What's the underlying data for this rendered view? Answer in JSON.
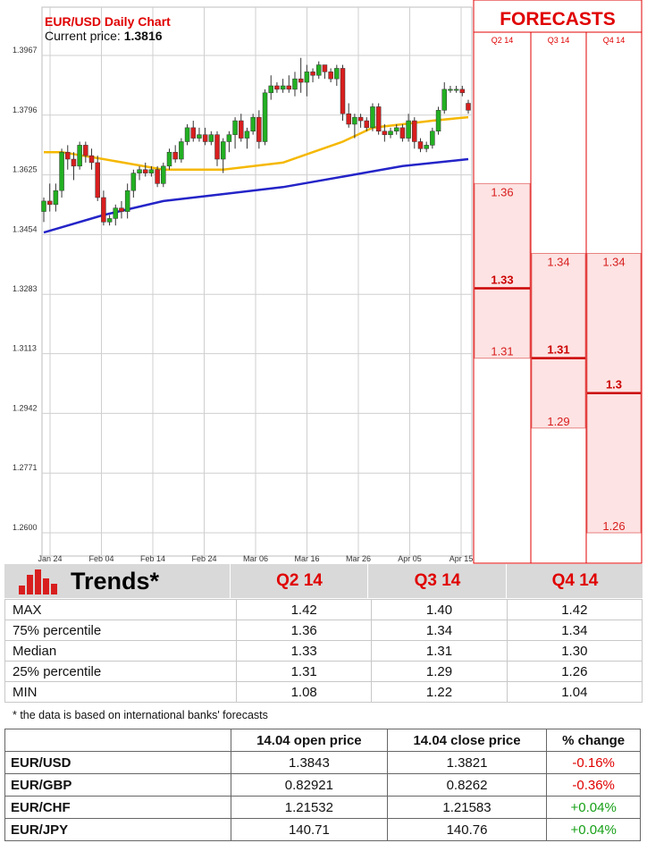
{
  "chart_data": [
    {
      "type": "candlestick",
      "title": "EUR/USD Daily Chart",
      "subtitle_label": "Current price: ",
      "current_price": "1.3816",
      "y_ticks": [
        "1.3967",
        "1.3796",
        "1.3625",
        "1.3454",
        "1.3283",
        "1.3113",
        "1.2942",
        "1.2771",
        "1.2600"
      ],
      "x_ticks": [
        "Jan 24",
        "Feb 04",
        "Feb 14",
        "Feb 24",
        "Mar 06",
        "Mar 16",
        "Mar 26",
        "Apr 05",
        "Apr 15"
      ],
      "ylim": [
        1.26,
        1.3967
      ],
      "grid": true,
      "candles": [
        [
          1.352,
          1.356,
          1.349,
          1.355
        ],
        [
          1.355,
          1.36,
          1.352,
          1.354
        ],
        [
          1.354,
          1.36,
          1.352,
          1.358
        ],
        [
          1.358,
          1.37,
          1.356,
          1.369
        ],
        [
          1.369,
          1.371,
          1.364,
          1.367
        ],
        [
          1.367,
          1.369,
          1.361,
          1.365
        ],
        [
          1.365,
          1.372,
          1.364,
          1.371
        ],
        [
          1.371,
          1.372,
          1.366,
          1.368
        ],
        [
          1.368,
          1.37,
          1.364,
          1.366
        ],
        [
          1.366,
          1.368,
          1.355,
          1.356
        ],
        [
          1.356,
          1.358,
          1.348,
          1.349
        ],
        [
          1.349,
          1.351,
          1.348,
          1.35
        ],
        [
          1.35,
          1.354,
          1.348,
          1.353
        ],
        [
          1.353,
          1.355,
          1.35,
          1.352
        ],
        [
          1.352,
          1.36,
          1.35,
          1.358
        ],
        [
          1.358,
          1.364,
          1.356,
          1.363
        ],
        [
          1.363,
          1.365,
          1.361,
          1.364
        ],
        [
          1.364,
          1.366,
          1.362,
          1.363
        ],
        [
          1.363,
          1.365,
          1.362,
          1.364
        ],
        [
          1.364,
          1.365,
          1.359,
          1.36
        ],
        [
          1.36,
          1.366,
          1.359,
          1.365
        ],
        [
          1.365,
          1.37,
          1.364,
          1.369
        ],
        [
          1.369,
          1.371,
          1.366,
          1.367
        ],
        [
          1.367,
          1.373,
          1.366,
          1.372
        ],
        [
          1.372,
          1.377,
          1.371,
          1.376
        ],
        [
          1.376,
          1.378,
          1.372,
          1.373
        ],
        [
          1.373,
          1.376,
          1.372,
          1.374
        ],
        [
          1.374,
          1.376,
          1.371,
          1.372
        ],
        [
          1.372,
          1.375,
          1.371,
          1.374
        ],
        [
          1.374,
          1.375,
          1.365,
          1.367
        ],
        [
          1.367,
          1.373,
          1.363,
          1.372
        ],
        [
          1.372,
          1.375,
          1.369,
          1.374
        ],
        [
          1.374,
          1.379,
          1.37,
          1.378
        ],
        [
          1.378,
          1.38,
          1.372,
          1.373
        ],
        [
          1.373,
          1.376,
          1.37,
          1.375
        ],
        [
          1.375,
          1.38,
          1.374,
          1.379
        ],
        [
          1.379,
          1.381,
          1.37,
          1.372
        ],
        [
          1.372,
          1.387,
          1.371,
          1.386
        ],
        [
          1.386,
          1.391,
          1.384,
          1.388
        ],
        [
          1.388,
          1.389,
          1.386,
          1.387
        ],
        [
          1.387,
          1.39,
          1.386,
          1.388
        ],
        [
          1.388,
          1.391,
          1.386,
          1.387
        ],
        [
          1.387,
          1.392,
          1.385,
          1.39
        ],
        [
          1.39,
          1.396,
          1.386,
          1.389
        ],
        [
          1.389,
          1.394,
          1.385,
          1.392
        ],
        [
          1.392,
          1.393,
          1.389,
          1.391
        ],
        [
          1.391,
          1.395,
          1.39,
          1.394
        ],
        [
          1.394,
          1.394,
          1.39,
          1.392
        ],
        [
          1.392,
          1.393,
          1.389,
          1.39
        ],
        [
          1.39,
          1.394,
          1.388,
          1.393
        ],
        [
          1.393,
          1.394,
          1.378,
          1.38
        ],
        [
          1.38,
          1.383,
          1.376,
          1.377
        ],
        [
          1.377,
          1.38,
          1.373,
          1.379
        ],
        [
          1.379,
          1.38,
          1.376,
          1.378
        ],
        [
          1.378,
          1.379,
          1.375,
          1.376
        ],
        [
          1.376,
          1.383,
          1.375,
          1.382
        ],
        [
          1.382,
          1.383,
          1.374,
          1.375
        ],
        [
          1.375,
          1.377,
          1.372,
          1.374
        ],
        [
          1.374,
          1.376,
          1.373,
          1.375
        ],
        [
          1.375,
          1.377,
          1.374,
          1.376
        ],
        [
          1.376,
          1.377,
          1.372,
          1.373
        ],
        [
          1.373,
          1.38,
          1.372,
          1.378
        ],
        [
          1.378,
          1.379,
          1.37,
          1.372
        ],
        [
          1.372,
          1.373,
          1.369,
          1.37
        ],
        [
          1.37,
          1.372,
          1.369,
          1.371
        ],
        [
          1.371,
          1.376,
          1.37,
          1.375
        ],
        [
          1.375,
          1.382,
          1.374,
          1.381
        ],
        [
          1.381,
          1.389,
          1.38,
          1.387
        ],
        [
          1.387,
          1.388,
          1.386,
          1.387
        ],
        [
          1.387,
          1.388,
          1.386,
          1.387
        ],
        [
          1.387,
          1.388,
          1.385,
          1.386
        ],
        [
          1.383,
          1.384,
          1.38,
          1.381
        ]
      ],
      "ma_fast": [
        [
          0,
          1.369
        ],
        [
          3,
          1.369
        ],
        [
          10,
          1.367
        ],
        [
          20,
          1.364
        ],
        [
          30,
          1.364
        ],
        [
          40,
          1.366
        ],
        [
          45,
          1.369
        ],
        [
          50,
          1.372
        ],
        [
          55,
          1.376
        ],
        [
          60,
          1.377
        ],
        [
          65,
          1.378
        ],
        [
          71,
          1.379
        ]
      ],
      "ma_slow": [
        [
          0,
          1.346
        ],
        [
          10,
          1.351
        ],
        [
          20,
          1.355
        ],
        [
          30,
          1.357
        ],
        [
          40,
          1.359
        ],
        [
          50,
          1.362
        ],
        [
          60,
          1.365
        ],
        [
          71,
          1.367
        ]
      ],
      "colors": {
        "up": "#22b022",
        "down": "#d81e1e",
        "ma_fast": "#f5b800",
        "ma_slow": "#2424c8",
        "title": "#e00000"
      }
    },
    {
      "type": "range-forecast",
      "title": "FORECASTS",
      "periods": [
        "Q2 14",
        "Q3 14",
        "Q4 14"
      ],
      "ylim": [
        1.26,
        1.3967
      ],
      "ranges": [
        {
          "period": "Q2 14",
          "p75": 1.36,
          "median": 1.33,
          "p25": 1.31,
          "p75_label": "1.36",
          "median_label": "1.33",
          "p25_label": "1.31"
        },
        {
          "period": "Q3 14",
          "p75": 1.34,
          "median": 1.31,
          "p25": 1.29,
          "p75_label": "1.34",
          "median_label": "1.31",
          "p25_label": "1.29"
        },
        {
          "period": "Q4 14",
          "p75": 1.34,
          "median": 1.3,
          "p25": 1.26,
          "p75_label": "1.34",
          "median_label": "1.3",
          "p25_label": "1.26"
        }
      ]
    }
  ],
  "trends": {
    "title": "Trends*",
    "icon": "bar-chart-icon",
    "columns": [
      "Q2 14",
      "Q3 14",
      "Q4 14"
    ],
    "rows": [
      {
        "label": "MAX",
        "values": [
          "1.42",
          "1.40",
          "1.42"
        ]
      },
      {
        "label": "75% percentile",
        "values": [
          "1.36",
          "1.34",
          "1.34"
        ]
      },
      {
        "label": "Median",
        "values": [
          "1.33",
          "1.31",
          "1.30"
        ]
      },
      {
        "label": "25% percentile",
        "values": [
          "1.31",
          "1.29",
          "1.26"
        ]
      },
      {
        "label": "MIN",
        "values": [
          "1.08",
          "1.22",
          "1.04"
        ]
      }
    ],
    "footnote": "* the data is based on international banks' forecasts"
  },
  "pairs": {
    "headers": [
      "",
      "14.04 open price",
      "14.04 close price",
      "% change"
    ],
    "rows": [
      {
        "pair": "EUR/USD",
        "open": "1.3843",
        "close": "1.3821",
        "change": "-0.16%",
        "direction": "down"
      },
      {
        "pair": "EUR/GBP",
        "open": "0.82921",
        "close": "0.8262",
        "change": "-0.36%",
        "direction": "down"
      },
      {
        "pair": "EUR/CHF",
        "open": "1.21532",
        "close": "1.21583",
        "change": "+0.04%",
        "direction": "up"
      },
      {
        "pair": "EUR/JPY",
        "open": "140.71",
        "close": "140.76",
        "change": "+0.04%",
        "direction": "up"
      }
    ]
  }
}
